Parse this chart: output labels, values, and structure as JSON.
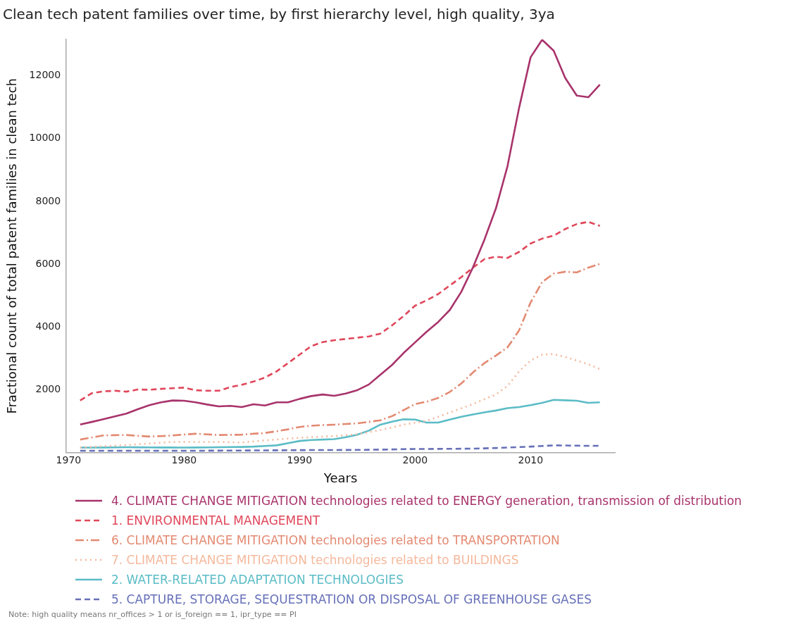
{
  "chart_data": {
    "type": "line",
    "title": "Clean tech patent families over time, by first hierarchy level, high quality, 3ya",
    "xlabel": "Years",
    "ylabel": "Fractional count of total patent families in clean tech",
    "x": [
      1971,
      1972,
      1973,
      1974,
      1975,
      1976,
      1977,
      1978,
      1979,
      1980,
      1981,
      1982,
      1983,
      1984,
      1985,
      1986,
      1987,
      1988,
      1989,
      1990,
      1991,
      1992,
      1993,
      1994,
      1995,
      1996,
      1997,
      1998,
      1999,
      2000,
      2001,
      2002,
      2003,
      2004,
      2005,
      2006,
      2007,
      2008,
      2009,
      2010,
      2011,
      2012,
      2013,
      2014,
      2015,
      2016
    ],
    "series": [
      {
        "name": "4. CLIMATE CHANGE MITIGATION technologies related to ENERGY generation, transmission of distribution",
        "color": "#a8336b",
        "line_style": "solid",
        "values": [
          893,
          975,
          1060,
          1150,
          1240,
          1380,
          1510,
          1600,
          1660,
          1650,
          1600,
          1530,
          1470,
          1490,
          1450,
          1540,
          1500,
          1600,
          1600,
          1710,
          1800,
          1850,
          1810,
          1880,
          1990,
          2170,
          2480,
          2790,
          3170,
          3510,
          3850,
          4160,
          4540,
          5120,
          5890,
          6780,
          7780,
          9120,
          10970,
          12590,
          13150,
          12800,
          11930,
          11370,
          11320,
          11720
        ]
      },
      {
        "name": "1. ENVIRONMENTAL MANAGEMENT",
        "color": "#e0475a",
        "line_style": "dashed",
        "values": [
          1660,
          1890,
          1950,
          1970,
          1940,
          2010,
          2000,
          2030,
          2050,
          2070,
          1985,
          1970,
          1970,
          2085,
          2160,
          2260,
          2390,
          2585,
          2850,
          3120,
          3390,
          3520,
          3580,
          3620,
          3660,
          3700,
          3790,
          4050,
          4350,
          4680,
          4850,
          5050,
          5320,
          5590,
          5890,
          6160,
          6240,
          6200,
          6390,
          6660,
          6815,
          6910,
          7120,
          7280,
          7350,
          7220
        ]
      },
      {
        "name": "6. CLIMATE CHANGE MITIGATION technologies related to TRANSPORTATION",
        "color": "#e38a72",
        "line_style": "dashdot",
        "values": [
          415,
          480,
          545,
          555,
          560,
          535,
          510,
          525,
          545,
          575,
          600,
          580,
          560,
          565,
          570,
          600,
          625,
          680,
          740,
          815,
          855,
          875,
          890,
          910,
          930,
          980,
          1030,
          1160,
          1350,
          1545,
          1620,
          1740,
          1930,
          2200,
          2550,
          2850,
          3090,
          3350,
          3890,
          4780,
          5430,
          5700,
          5760,
          5740,
          5890,
          6010
        ]
      },
      {
        "name": "7. CLIMATE CHANGE MITIGATION technologies related to BUILDINGS",
        "color": "#f5b99d",
        "line_style": "dotted",
        "values": [
          160,
          180,
          200,
          220,
          240,
          265,
          290,
          315,
          340,
          340,
          340,
          340,
          340,
          330,
          320,
          355,
          390,
          415,
          445,
          470,
          490,
          510,
          525,
          555,
          585,
          650,
          720,
          800,
          890,
          950,
          1010,
          1140,
          1275,
          1410,
          1545,
          1700,
          1850,
          2120,
          2585,
          2930,
          3120,
          3140,
          3045,
          2930,
          2815,
          2660
        ]
      },
      {
        "name": "2. WATER-RELATED ADAPTATION TECHNOLOGIES",
        "color": "#5bbcc6",
        "line_style": "solid",
        "values": [
          160,
          160,
          162,
          165,
          170,
          168,
          165,
          163,
          162,
          160,
          162,
          165,
          170,
          175,
          180,
          190,
          210,
          230,
          300,
          370,
          400,
          415,
          430,
          490,
          570,
          700,
          890,
          985,
          1060,
          1050,
          955,
          955,
          1050,
          1140,
          1215,
          1280,
          1340,
          1415,
          1450,
          1510,
          1585,
          1680,
          1665,
          1650,
          1585,
          1600
        ]
      },
      {
        "name": "5. CAPTURE, STORAGE, SEQUESTRATION OR DISPOSAL OF GREENHOUSE GASES",
        "color": "#6670b8",
        "line_style": "dashed",
        "values": [
          60,
          60,
          60,
          60,
          60,
          60,
          60,
          60,
          60,
          60,
          60,
          60,
          62,
          65,
          65,
          68,
          70,
          72,
          75,
          78,
          80,
          80,
          82,
          83,
          85,
          90,
          95,
          100,
          110,
          115,
          115,
          118,
          120,
          122,
          125,
          135,
          145,
          160,
          175,
          190,
          210,
          230,
          225,
          220,
          215,
          215
        ]
      }
    ],
    "xlim": [
      1969.8,
      2017.3
    ],
    "xticks": [
      1970,
      1980,
      1990,
      2000,
      2010
    ],
    "ylim": [
      0,
      13160
    ],
    "yticks": [
      2000,
      4000,
      6000,
      8000,
      10000,
      12000
    ],
    "grid": false,
    "legend": "bottom",
    "marker": "none",
    "annotations": [
      "Note: high quality means nr_offices > 1 or is_foreign == 1, ipr_type == PI"
    ]
  }
}
